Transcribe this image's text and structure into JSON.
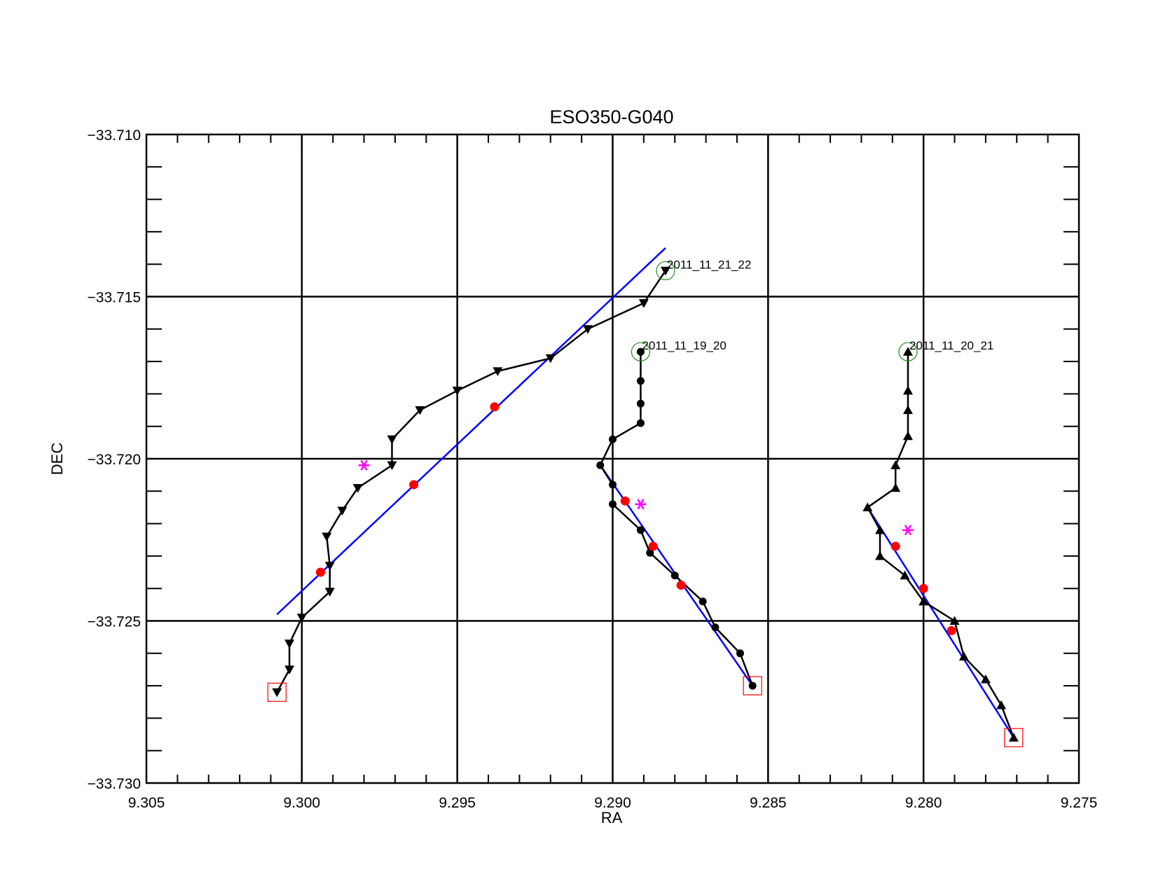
{
  "chart_data": {
    "type": "scatter",
    "title": "ESO350-G040",
    "xlabel": "RA",
    "ylabel": "DEC",
    "xlim": [
      9.305,
      9.275
    ],
    "ylim": [
      -33.73,
      -33.71
    ],
    "x_reversed": true,
    "grid": true,
    "xticks": [
      9.305,
      9.3,
      9.295,
      9.29,
      9.285,
      9.28,
      9.275
    ],
    "xtick_labels": [
      "9.305",
      "9.300",
      "9.295",
      "9.290",
      "9.285",
      "9.280",
      "9.275"
    ],
    "yticks": [
      -33.71,
      -33.715,
      -33.72,
      -33.725,
      -33.73
    ],
    "ytick_labels": [
      "−33.710",
      "−33.715",
      "−33.720",
      "−33.725",
      "−33.730"
    ],
    "grid_x": [
      9.3,
      9.295,
      9.29,
      9.285,
      9.28
    ],
    "grid_y": [
      -33.715,
      -33.72,
      -33.725
    ],
    "colors": {
      "track": "#000000",
      "fit_line": "#0000ff",
      "fit_point": "#ff0000",
      "star": "#ff00ff",
      "start_marker": "#228b22",
      "end_marker": "#ff0000"
    },
    "series": [
      {
        "marker": "triangle-down",
        "label": "2011_11_21_22",
        "path": [
          [
            9.2883,
            -33.7142
          ],
          [
            9.289,
            -33.7152
          ],
          [
            9.2908,
            -33.716
          ],
          [
            9.292,
            -33.7169
          ],
          [
            9.2937,
            -33.7173
          ],
          [
            9.295,
            -33.7179
          ],
          [
            9.2962,
            -33.7185
          ],
          [
            9.2971,
            -33.7194
          ],
          [
            9.2971,
            -33.7202
          ],
          [
            9.2982,
            -33.7209
          ],
          [
            9.2987,
            -33.7216
          ],
          [
            9.2992,
            -33.7224
          ],
          [
            9.2991,
            -33.7233
          ],
          [
            9.2991,
            -33.7241
          ],
          [
            9.3,
            -33.7249
          ],
          [
            9.3004,
            -33.7257
          ],
          [
            9.3004,
            -33.7265
          ],
          [
            9.3008,
            -33.7272
          ]
        ],
        "start": [
          9.2883,
          -33.7142
        ],
        "end": [
          9.3008,
          -33.7272
        ],
        "fit_line": [
          [
            9.3008,
            -33.7248
          ],
          [
            9.2883,
            -33.7135
          ]
        ],
        "fit_points": [
          [
            9.2994,
            -33.7235
          ],
          [
            9.2964,
            -33.7208
          ],
          [
            9.2938,
            -33.7184
          ]
        ],
        "star": [
          9.298,
          -33.7202
        ]
      },
      {
        "marker": "circle",
        "label": "2011_11_19_20",
        "path": [
          [
            9.2891,
            -33.7167
          ],
          [
            9.2891,
            -33.7176
          ],
          [
            9.2891,
            -33.7183
          ],
          [
            9.2891,
            -33.7189
          ],
          [
            9.29,
            -33.7194
          ],
          [
            9.2904,
            -33.7202
          ],
          [
            9.29,
            -33.7208
          ],
          [
            9.29,
            -33.7214
          ],
          [
            9.2891,
            -33.7222
          ],
          [
            9.2888,
            -33.7229
          ],
          [
            9.288,
            -33.7236
          ],
          [
            9.2871,
            -33.7244
          ],
          [
            9.2867,
            -33.7252
          ],
          [
            9.2859,
            -33.726
          ],
          [
            9.2855,
            -33.727
          ]
        ],
        "start": [
          9.2891,
          -33.7167
        ],
        "end": [
          9.2855,
          -33.727
        ],
        "fit_line": [
          [
            9.2904,
            -33.7202
          ],
          [
            9.2855,
            -33.727
          ]
        ],
        "fit_points": [
          [
            9.2896,
            -33.7213
          ],
          [
            9.2887,
            -33.7227
          ],
          [
            9.2878,
            -33.7239
          ]
        ],
        "star": [
          9.2891,
          -33.7214
        ]
      },
      {
        "marker": "triangle-up",
        "label": "2011_11_20_21",
        "path": [
          [
            9.2805,
            -33.7167
          ],
          [
            9.2805,
            -33.7179
          ],
          [
            9.2805,
            -33.7185
          ],
          [
            9.2805,
            -33.7193
          ],
          [
            9.2809,
            -33.7202
          ],
          [
            9.2809,
            -33.7209
          ],
          [
            9.2818,
            -33.7215
          ],
          [
            9.2814,
            -33.7222
          ],
          [
            9.2814,
            -33.723
          ],
          [
            9.2806,
            -33.7236
          ],
          [
            9.28,
            -33.7244
          ],
          [
            9.279,
            -33.725
          ],
          [
            9.2787,
            -33.7261
          ],
          [
            9.278,
            -33.7268
          ],
          [
            9.2775,
            -33.7276
          ],
          [
            9.2771,
            -33.7286
          ]
        ],
        "start": [
          9.2805,
          -33.7167
        ],
        "end": [
          9.2771,
          -33.7286
        ],
        "fit_line": [
          [
            9.2818,
            -33.7215
          ],
          [
            9.2771,
            -33.7286
          ]
        ],
        "fit_points": [
          [
            9.2809,
            -33.7227
          ],
          [
            9.28,
            -33.724
          ],
          [
            9.2791,
            -33.7253
          ]
        ],
        "star": [
          9.2805,
          -33.7222
        ]
      }
    ]
  }
}
